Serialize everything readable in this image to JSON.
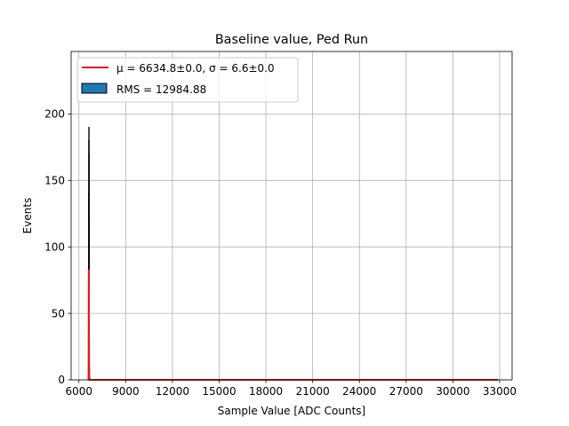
{
  "chart_data": {
    "type": "bar",
    "title": "Baseline value, Ped Run",
    "xlabel": "Sample Value [ADC Counts]",
    "ylabel": "Events",
    "xlim": [
      5500,
      33800
    ],
    "ylim": [
      0,
      247
    ],
    "xticks": [
      6000,
      9000,
      12000,
      15000,
      18000,
      21000,
      24000,
      27000,
      30000,
      33000
    ],
    "xtick_labels": [
      "6000",
      "9000",
      "12000",
      "15000",
      "18000",
      "21000",
      "24000",
      "27000",
      "30000",
      "33000"
    ],
    "yticks": [
      0,
      50,
      100,
      150,
      200
    ],
    "ytick_labels": [
      "0",
      "50",
      "100",
      "150",
      "200"
    ],
    "grid": true,
    "legend_position": "top-left",
    "histogram": {
      "name": "RMS = 12984.88",
      "x": [
        6605,
        6610,
        6615,
        6620,
        6625,
        6630,
        6635,
        6640,
        6645,
        6650,
        6655,
        6660,
        6665
      ],
      "values": [
        3,
        10,
        30,
        85,
        140,
        180,
        190,
        170,
        120,
        70,
        30,
        10,
        2
      ],
      "fill_color": "#1f77b4",
      "edge_color": "#000000"
    },
    "fit": {
      "name": "$\\mu = 6634.8 \\pm 0.0, \\sigma = 6.6 \\pm 0.0$",
      "name_display": "μ = 6634.8±0.0, σ = 6.6±0.0",
      "mu": 6634.8,
      "sigma": 6.6,
      "peak": 83,
      "x_range": [
        6600,
        32900
      ],
      "color": "#e41a1c"
    }
  }
}
